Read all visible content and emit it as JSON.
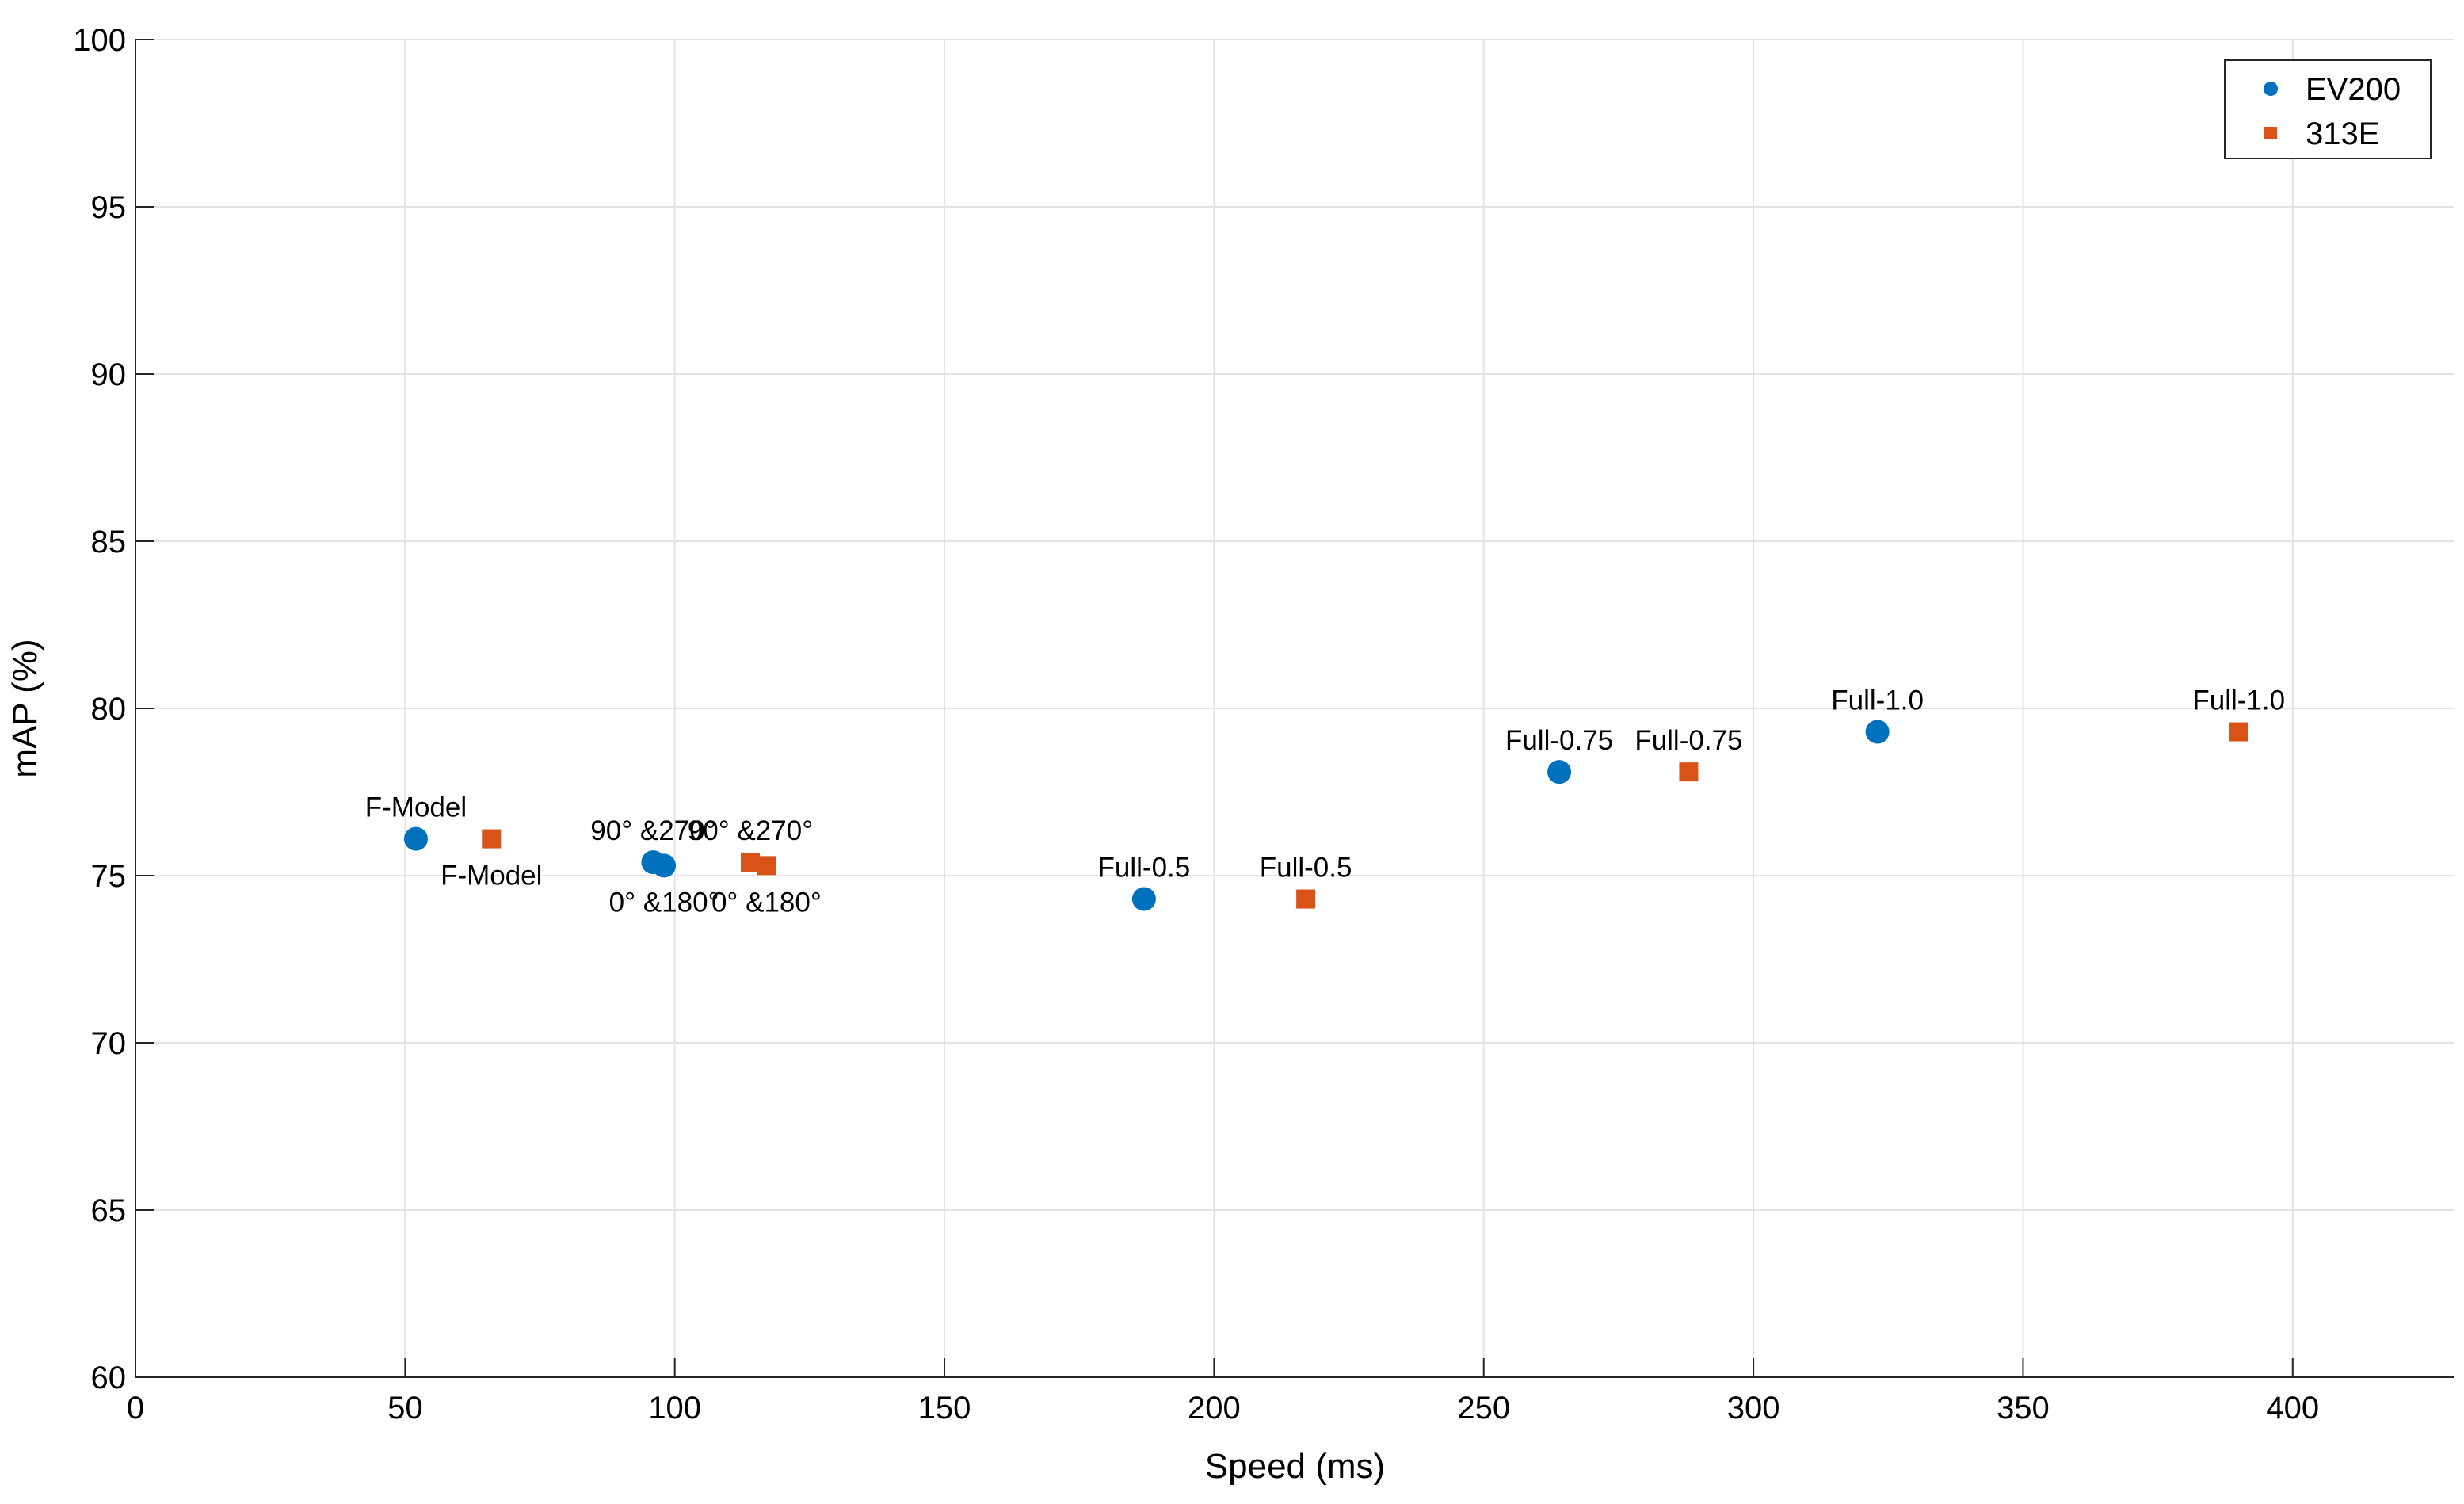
{
  "chart_data": {
    "type": "scatter",
    "xlabel": "Speed (ms)",
    "ylabel": "mAP (%)",
    "xlim": [
      0,
      430
    ],
    "ylim": [
      60,
      100
    ],
    "xticks": [
      0,
      50,
      100,
      150,
      200,
      250,
      300,
      350,
      400
    ],
    "yticks": [
      60,
      65,
      70,
      75,
      80,
      85,
      90,
      95,
      100
    ],
    "grid": true,
    "legend_position": "top-right",
    "series": [
      {
        "name": "EV200",
        "marker": "circle",
        "color": "#0072BD",
        "points": [
          {
            "x": 52,
            "y": 76.1,
            "label": "F-Model",
            "label_pos": "above"
          },
          {
            "x": 96,
            "y": 75.4,
            "label": "90° &270°",
            "label_pos": "above"
          },
          {
            "x": 98,
            "y": 75.3,
            "label": "0° &180°",
            "label_pos": "below"
          },
          {
            "x": 187,
            "y": 74.3,
            "label": "Full-0.5",
            "label_pos": "above"
          },
          {
            "x": 264,
            "y": 78.1,
            "label": "Full-0.75",
            "label_pos": "above"
          },
          {
            "x": 323,
            "y": 79.3,
            "label": "Full-1.0",
            "label_pos": "above"
          }
        ]
      },
      {
        "name": "313E",
        "marker": "square",
        "color": "#D95319",
        "points": [
          {
            "x": 66,
            "y": 76.1,
            "label": "F-Model",
            "label_pos": "below"
          },
          {
            "x": 114,
            "y": 75.4,
            "label": "90° &270°",
            "label_pos": "above"
          },
          {
            "x": 117,
            "y": 75.3,
            "label": "0° &180°",
            "label_pos": "below"
          },
          {
            "x": 217,
            "y": 74.3,
            "label": "Full-0.5",
            "label_pos": "above"
          },
          {
            "x": 288,
            "y": 78.1,
            "label": "Full-0.75",
            "label_pos": "above"
          },
          {
            "x": 390,
            "y": 79.3,
            "label": "Full-1.0",
            "label_pos": "above"
          }
        ]
      }
    ]
  }
}
